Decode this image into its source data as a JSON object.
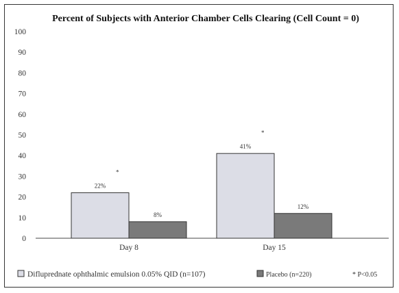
{
  "chart_data": {
    "type": "bar",
    "title": "Percent of Subjects with Anterior Chamber Cells Clearing (Cell Count = 0)",
    "categories": [
      "Day 8",
      "Day 15"
    ],
    "series": [
      {
        "name": "Difluprednate ophthalmic emulsion 0.05% QID (n=107)",
        "values": [
          22,
          41
        ],
        "labels": [
          "22%",
          "41%"
        ],
        "color": "#dcdde6"
      },
      {
        "name": "Placebo (n=220)",
        "values": [
          8,
          12
        ],
        "labels": [
          "8%",
          "12%"
        ],
        "color": "#7a7a7a"
      }
    ],
    "significance_markers": [
      "*",
      "*"
    ],
    "significance_legend": "* P<0.05",
    "ylim": [
      0,
      100
    ],
    "yticks": [
      0,
      10,
      20,
      30,
      40,
      50,
      60,
      70,
      80,
      90,
      100
    ],
    "grid": false,
    "legend_position": "bottom"
  }
}
